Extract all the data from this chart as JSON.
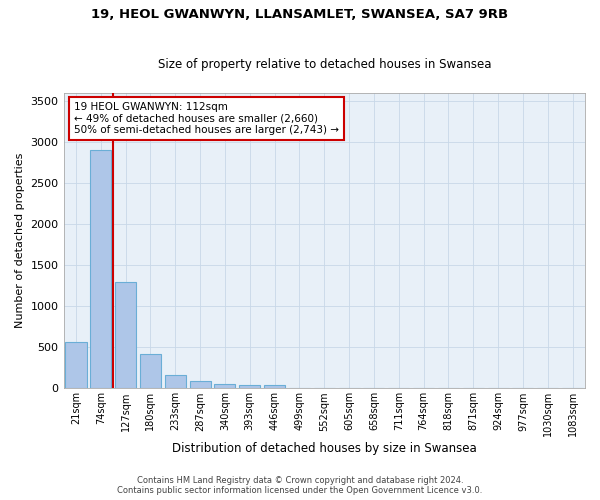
{
  "title_line1": "19, HEOL GWANWYN, LLANSAMLET, SWANSEA, SA7 9RB",
  "title_line2": "Size of property relative to detached houses in Swansea",
  "xlabel": "Distribution of detached houses by size in Swansea",
  "ylabel": "Number of detached properties",
  "categories": [
    "21sqm",
    "74sqm",
    "127sqm",
    "180sqm",
    "233sqm",
    "287sqm",
    "340sqm",
    "393sqm",
    "446sqm",
    "499sqm",
    "552sqm",
    "605sqm",
    "658sqm",
    "711sqm",
    "764sqm",
    "818sqm",
    "871sqm",
    "924sqm",
    "977sqm",
    "1030sqm",
    "1083sqm"
  ],
  "values": [
    570,
    2900,
    1300,
    415,
    160,
    85,
    50,
    45,
    45,
    0,
    0,
    0,
    0,
    0,
    0,
    0,
    0,
    0,
    0,
    0,
    0
  ],
  "bar_color": "#aec6e8",
  "bar_edge_color": "#6aaed6",
  "grid_color": "#c8d8e8",
  "background_color": "#e8f0f8",
  "vline_color": "#cc0000",
  "annotation_text": "19 HEOL GWANWYN: 112sqm\n← 49% of detached houses are smaller (2,660)\n50% of semi-detached houses are larger (2,743) →",
  "annotation_box_color": "#ffffff",
  "annotation_box_edge": "#cc0000",
  "ylim": [
    0,
    3600
  ],
  "yticks": [
    0,
    500,
    1000,
    1500,
    2000,
    2500,
    3000,
    3500
  ],
  "footer_line1": "Contains HM Land Registry data © Crown copyright and database right 2024.",
  "footer_line2": "Contains public sector information licensed under the Open Government Licence v3.0."
}
